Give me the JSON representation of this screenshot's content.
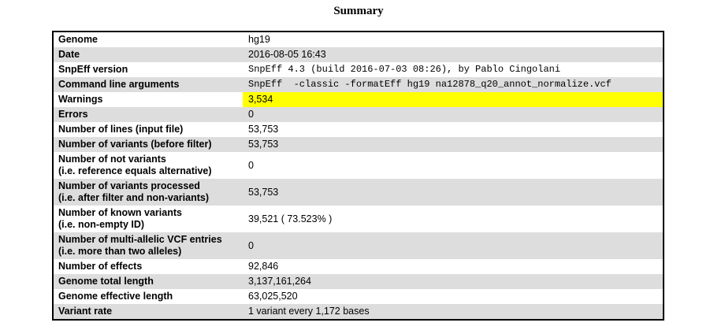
{
  "title": "Summary",
  "rows": [
    {
      "key": "Genome",
      "value": "hg19"
    },
    {
      "key": "Date",
      "value": "2016-08-05 16:43"
    },
    {
      "key": "SnpEff version",
      "value": "SnpEff 4.3 (build 2016-07-03 08:26), by Pablo Cingolani"
    },
    {
      "key": "Command line arguments",
      "value": "SnpEff  -classic -formatEff hg19 na12878_q20_annot_normalize.vcf"
    },
    {
      "key": "Warnings",
      "value": "3,534"
    },
    {
      "key": "Errors",
      "value": "0"
    },
    {
      "key": "Number of lines (input file)",
      "value": "53,753"
    },
    {
      "key": "Number of variants (before filter)",
      "value": "53,753"
    },
    {
      "key": "Number of not variants",
      "key2": "(i.e. reference equals alternative)",
      "value": "0"
    },
    {
      "key": "Number of variants processed",
      "key2": "(i.e. after filter and non-variants)",
      "value": "53,753"
    },
    {
      "key": "Number of known variants",
      "key2": "(i.e. non-empty ID)",
      "value": "39,521 ( 73.523% )"
    },
    {
      "key": "Number of multi-allelic VCF entries",
      "key2": "(i.e. more than two alleles)",
      "value": "0"
    },
    {
      "key": "Number of effects",
      "value": "92,846"
    },
    {
      "key": "Genome total length",
      "value": "3,137,161,264"
    },
    {
      "key": "Genome effective length",
      "value": "63,025,520"
    },
    {
      "key": "Variant rate",
      "value": "1 variant every 1,172 bases"
    }
  ],
  "colors": {
    "stripe": "#dddddd",
    "warning_highlight": "#ffff00"
  }
}
